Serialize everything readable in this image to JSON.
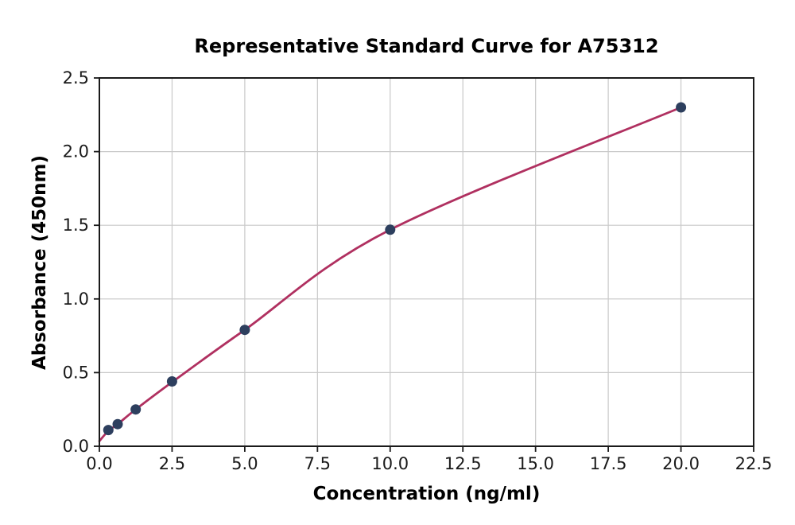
{
  "figure": {
    "background": "#ffffff"
  },
  "chart_data": {
    "type": "scatter",
    "title": "Representative Standard Curve for A75312",
    "xlabel": "Concentration (ng/ml)",
    "ylabel": "Absorbance (450nm)",
    "xlim": [
      0,
      22.5
    ],
    "ylim": [
      0,
      2.5
    ],
    "x_ticks": [
      0.0,
      2.5,
      5.0,
      7.5,
      10.0,
      12.5,
      15.0,
      17.5,
      20.0,
      22.5
    ],
    "x_tick_labels": [
      "0.0",
      "2.5",
      "5.0",
      "7.5",
      "10.0",
      "12.5",
      "15.0",
      "17.5",
      "20.0",
      "22.5"
    ],
    "y_ticks": [
      0.0,
      0.5,
      1.0,
      1.5,
      2.0,
      2.5
    ],
    "y_tick_labels": [
      "0.0",
      "0.5",
      "1.0",
      "1.5",
      "2.0",
      "2.5"
    ],
    "grid": true,
    "legend": "none",
    "series": [
      {
        "name": "standard-points",
        "type": "scatter",
        "x": [
          0.31,
          0.63,
          1.25,
          2.5,
          5,
          10,
          20
        ],
        "y": [
          0.11,
          0.15,
          0.25,
          0.44,
          0.79,
          1.47,
          2.3
        ]
      },
      {
        "name": "fit-curve",
        "type": "line",
        "x": [
          0,
          0.31,
          0.63,
          1.25,
          2.5,
          5,
          10,
          20
        ],
        "y": [
          0.035,
          0.105,
          0.15,
          0.25,
          0.435,
          0.79,
          1.47,
          2.3
        ]
      }
    ],
    "colors": {
      "marker": "#2d3f5e",
      "line": "#b03060",
      "grid": "#c9c9c9",
      "frame": "#1a1a1a",
      "tick": "#1a1a1a",
      "text": "#000000"
    }
  }
}
